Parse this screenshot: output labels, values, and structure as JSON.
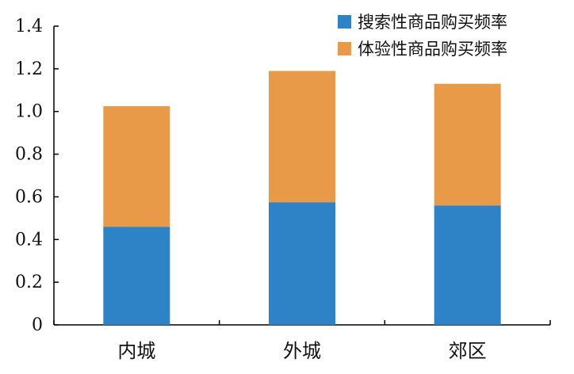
{
  "chart_data": {
    "type": "bar",
    "stacked": true,
    "categories": [
      "内城",
      "外城",
      "郊区"
    ],
    "series": [
      {
        "name": "搜索性商品购买频率",
        "color": "#2E83C6",
        "values": [
          0.46,
          0.575,
          0.56
        ]
      },
      {
        "name": "体验性商品购买频率",
        "color": "#E99A49",
        "values": [
          0.565,
          0.615,
          0.57
        ]
      }
    ],
    "title": "",
    "xlabel": "",
    "ylabel": "",
    "ylim": [
      0,
      1.4
    ],
    "yticks": [
      0,
      0.2,
      0.4,
      0.6,
      0.8,
      1.0,
      1.2,
      1.4
    ],
    "ytick_labels": [
      "0",
      "0.2",
      "0.4",
      "0.6",
      "0.8",
      "1.0",
      "1.2",
      "1.4"
    ],
    "grid": false,
    "legend_position": "top-right"
  }
}
